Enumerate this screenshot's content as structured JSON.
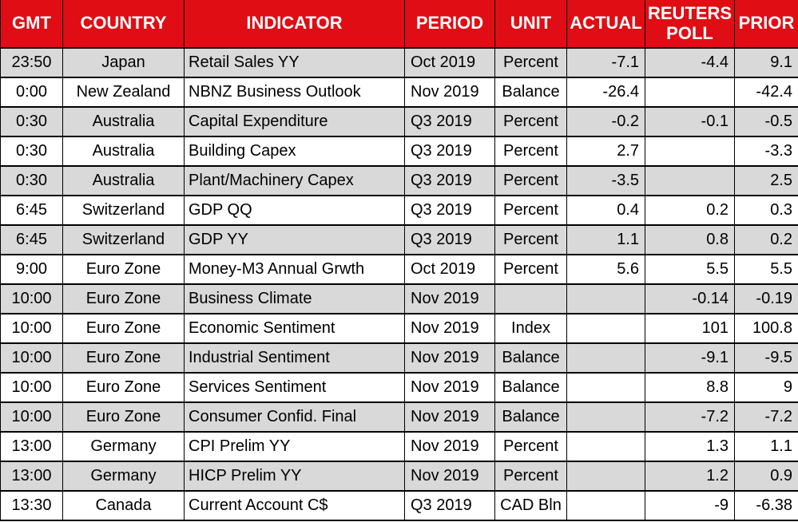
{
  "style": {
    "header_bg": "#E00D14",
    "header_text": "#FFFFFF",
    "row_alt_bg": "#D9D9D9",
    "row_bg": "#FFFFFF",
    "border_color": "#000000"
  },
  "chart_data": {
    "type": "table",
    "columns": [
      "GMT",
      "COUNTRY",
      "INDICATOR",
      "PERIOD",
      "UNIT",
      "ACTUAL",
      "REUTERS POLL",
      "PRIOR"
    ],
    "column_keys": [
      "gmt",
      "country",
      "indicator",
      "period",
      "unit",
      "actual",
      "reuters-poll",
      "prior"
    ],
    "rows": [
      [
        "23:50",
        "Japan",
        "Retail Sales YY",
        "Oct 2019",
        "Percent",
        "-7.1",
        "-4.4",
        "9.1"
      ],
      [
        "0:00",
        "New Zealand",
        "NBNZ Business Outlook",
        "Nov 2019",
        "Balance",
        "-26.4",
        "",
        "-42.4"
      ],
      [
        "0:30",
        "Australia",
        "Capital Expenditure",
        "Q3 2019",
        "Percent",
        "-0.2",
        "-0.1",
        "-0.5"
      ],
      [
        "0:30",
        "Australia",
        "Building Capex",
        "Q3 2019",
        "Percent",
        "2.7",
        "",
        "-3.3"
      ],
      [
        "0:30",
        "Australia",
        "Plant/Machinery Capex",
        "Q3 2019",
        "Percent",
        "-3.5",
        "",
        "2.5"
      ],
      [
        "6:45",
        "Switzerland",
        "GDP QQ",
        "Q3 2019",
        "Percent",
        "0.4",
        "0.2",
        "0.3"
      ],
      [
        "6:45",
        "Switzerland",
        "GDP YY",
        "Q3 2019",
        "Percent",
        "1.1",
        "0.8",
        "0.2"
      ],
      [
        "9:00",
        "Euro Zone",
        "Money-M3 Annual Grwth",
        "Oct 2019",
        "Percent",
        "5.6",
        "5.5",
        "5.5"
      ],
      [
        "10:00",
        "Euro Zone",
        "Business Climate",
        "Nov 2019",
        "",
        "",
        "-0.14",
        "-0.19"
      ],
      [
        "10:00",
        "Euro Zone",
        "Economic Sentiment",
        "Nov 2019",
        "Index",
        "",
        "101",
        "100.8"
      ],
      [
        "10:00",
        "Euro Zone",
        "Industrial Sentiment",
        "Nov 2019",
        "Balance",
        "",
        "-9.1",
        "-9.5"
      ],
      [
        "10:00",
        "Euro Zone",
        "Services Sentiment",
        "Nov 2019",
        "Balance",
        "",
        "8.8",
        "9"
      ],
      [
        "10:00",
        "Euro Zone",
        "Consumer Confid. Final",
        "Nov 2019",
        "Balance",
        "",
        "-7.2",
        "-7.2"
      ],
      [
        "13:00",
        "Germany",
        "CPI Prelim YY",
        "Nov 2019",
        "Percent",
        "",
        "1.3",
        "1.1"
      ],
      [
        "13:00",
        "Germany",
        "HICP Prelim YY",
        "Nov 2019",
        "Percent",
        "",
        "1.2",
        "0.9"
      ],
      [
        "13:30",
        "Canada",
        "Current Account C$",
        "Q3 2019",
        "CAD Bln",
        "",
        "-9",
        "-6.38"
      ]
    ]
  }
}
